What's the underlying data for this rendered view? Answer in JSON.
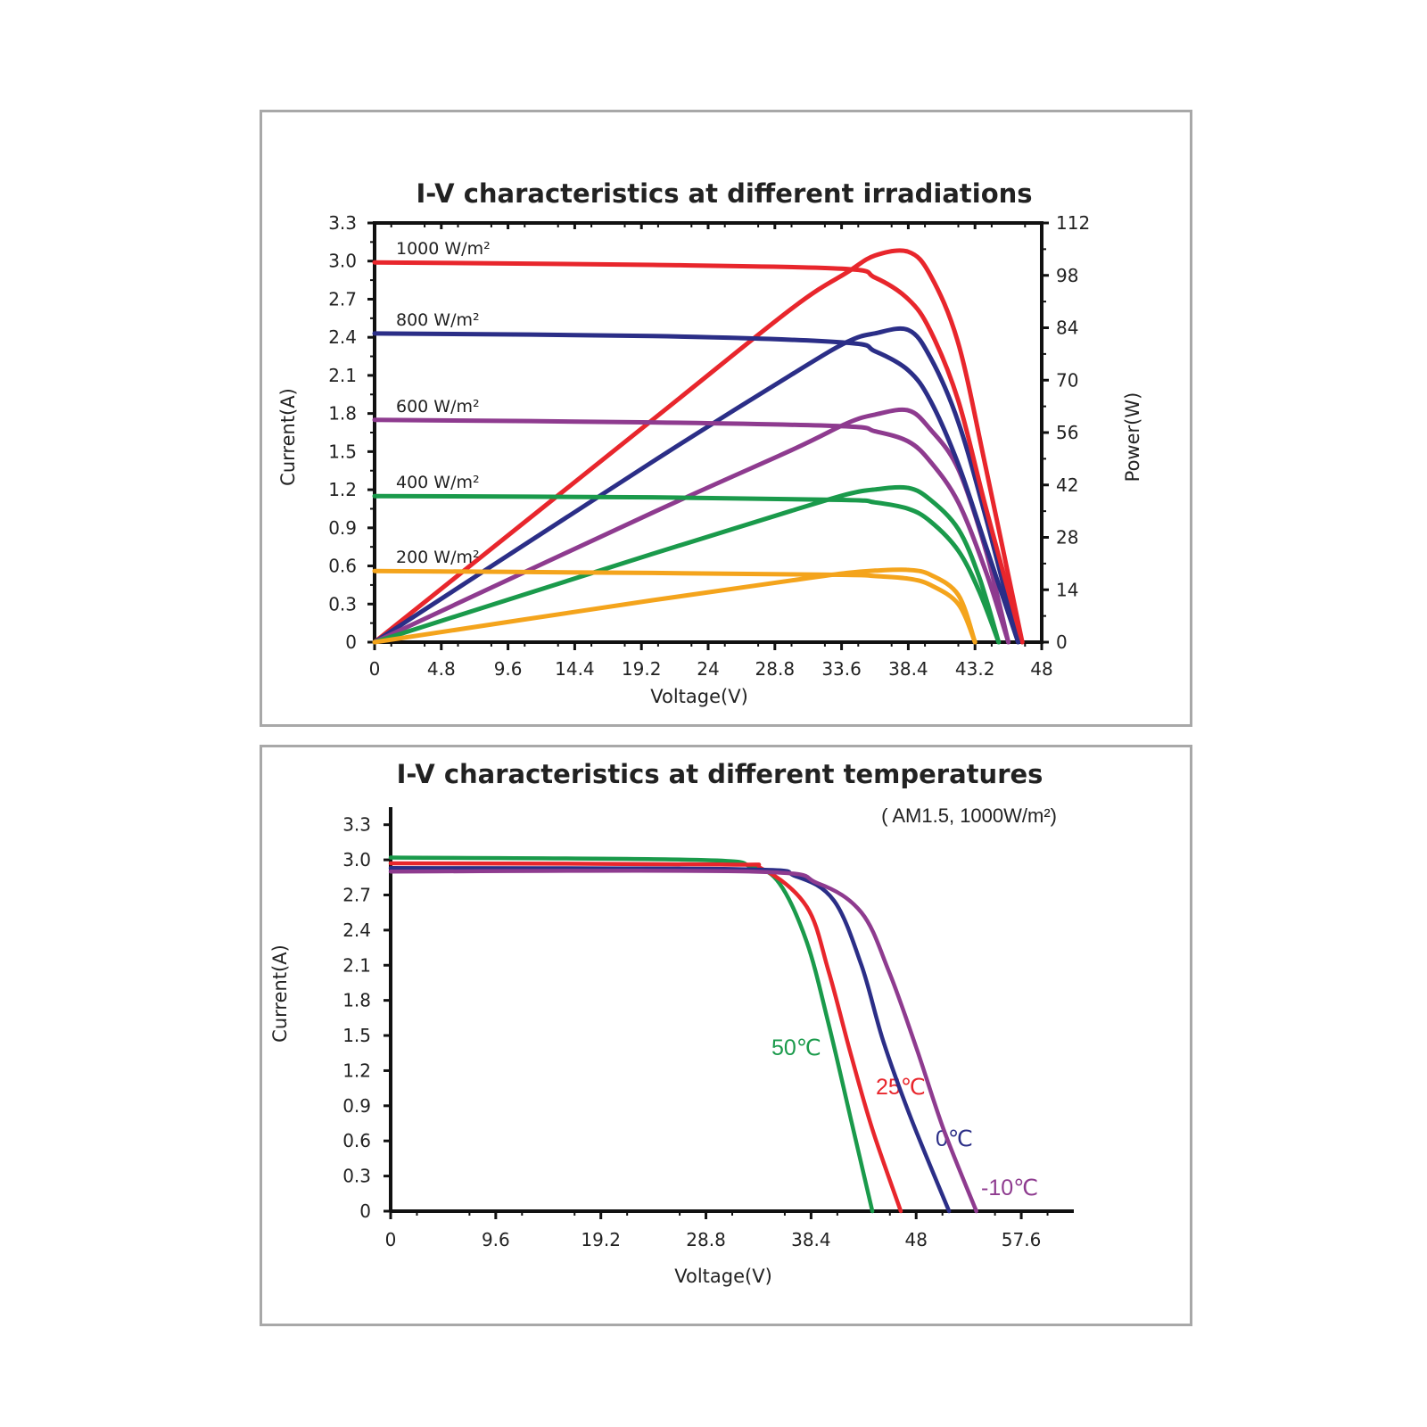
{
  "chart_data": [
    {
      "type": "line",
      "title": "I-V characteristics at different irradiations",
      "xlabel": "Voltage(V)",
      "ylabel": "Current(A)",
      "y2label": "Power(W)",
      "xlim": [
        0,
        48
      ],
      "ylim": [
        0,
        3.3
      ],
      "y2lim": [
        0,
        112
      ],
      "xticks": [
        "0",
        "4.8",
        "9.6",
        "14.4",
        "19.2",
        "24",
        "28.8",
        "33.6",
        "38.4",
        "43.2",
        "48"
      ],
      "yticks": [
        "0",
        "0.3",
        "0.6",
        "0.9",
        "1.2",
        "1.5",
        "1.8",
        "2.1",
        "2.4",
        "2.7",
        "3.0",
        "3.3"
      ],
      "y2ticks": [
        "0",
        "14",
        "28",
        "42",
        "56",
        "70",
        "84",
        "98",
        "112"
      ],
      "grid": false,
      "legend": "none",
      "series": [
        {
          "name": "1000 W/m²",
          "color": "#e8262c",
          "iv_voltage": [
            0,
            20,
            33.6,
            36,
            38.4,
            40,
            42,
            44,
            46.6
          ],
          "iv_current": [
            2.99,
            2.97,
            2.94,
            2.87,
            2.7,
            2.45,
            1.9,
            1.05,
            0
          ],
          "pv_voltage": [
            0,
            20,
            30,
            34,
            36,
            38.4,
            40,
            42,
            44,
            46.6
          ],
          "pv_power": [
            0,
            59.4,
            89.1,
            98.8,
            103.3,
            104.3,
            98,
            79.8,
            46.2,
            0
          ]
        },
        {
          "name": "800 W/m²",
          "color": "#2b2e87",
          "iv_voltage": [
            0,
            20,
            33.6,
            36,
            38.4,
            40,
            42,
            44,
            46.3
          ],
          "iv_current": [
            2.43,
            2.41,
            2.36,
            2.29,
            2.14,
            1.9,
            1.4,
            0.75,
            0
          ],
          "pv_voltage": [
            0,
            20,
            30,
            34,
            36,
            38.4,
            40,
            42,
            44,
            46.3
          ],
          "pv_power": [
            0,
            48.2,
            71.5,
            80.2,
            82.5,
            83.4,
            76,
            58.8,
            33,
            0
          ]
        },
        {
          "name": "600 W/m²",
          "color": "#8e3b8f",
          "iv_voltage": [
            0,
            20,
            33.6,
            36,
            38.4,
            40,
            42,
            44,
            45.6
          ],
          "iv_current": [
            1.75,
            1.73,
            1.7,
            1.66,
            1.58,
            1.42,
            1.1,
            0.55,
            0
          ],
          "pv_voltage": [
            0,
            20,
            30,
            34,
            36,
            38.4,
            40,
            42,
            44,
            45.6
          ],
          "pv_power": [
            0,
            34.6,
            51.3,
            58.5,
            60.8,
            61.9,
            56.8,
            46.2,
            24.2,
            0
          ]
        },
        {
          "name": "400 W/m²",
          "color": "#1a9a4b",
          "iv_voltage": [
            0,
            20,
            33.6,
            36,
            38.4,
            40,
            42,
            43.5,
            44.9
          ],
          "iv_current": [
            1.15,
            1.14,
            1.12,
            1.1,
            1.05,
            0.95,
            0.72,
            0.4,
            0
          ],
          "pv_voltage": [
            0,
            20,
            30,
            34,
            36,
            38.4,
            40,
            42,
            43.5,
            44.9
          ],
          "pv_power": [
            0,
            23.6,
            35.1,
            39.5,
            40.8,
            41.2,
            38,
            30.2,
            17.4,
            0
          ]
        },
        {
          "name": "200 W/m²",
          "color": "#f4a41c",
          "iv_voltage": [
            0,
            20,
            33.6,
            36,
            38.4,
            40,
            42,
            43.2
          ],
          "iv_current": [
            0.56,
            0.545,
            0.53,
            0.52,
            0.5,
            0.45,
            0.3,
            0
          ],
          "pv_voltage": [
            0,
            20,
            30,
            34,
            36,
            38.4,
            40,
            42,
            43.2
          ],
          "pv_power": [
            0,
            11.2,
            16.5,
            18.5,
            19.1,
            19.3,
            18,
            12.6,
            0
          ]
        }
      ]
    },
    {
      "type": "line",
      "title": "I-V characteristics at different temperatures",
      "subtitle": "( AM1.5, 1000W/m²)",
      "xlabel": "Voltage(V)",
      "ylabel": "Current(A)",
      "xlim": [
        0,
        62.4
      ],
      "ylim": [
        0,
        3.45
      ],
      "xticks": [
        "0",
        "9.6",
        "19.2",
        "28.8",
        "38.4",
        "48",
        "57.6"
      ],
      "yticks": [
        "0",
        "0.3",
        "0.6",
        "0.9",
        "1.2",
        "1.5",
        "1.8",
        "2.1",
        "2.4",
        "2.7",
        "3.0",
        "3.3"
      ],
      "grid": false,
      "legend": "none",
      "series": [
        {
          "name": "50℃",
          "color": "#1a9a4b",
          "x": [
            0,
            28,
            33,
            35.5,
            38,
            40,
            42,
            44
          ],
          "y": [
            3.02,
            3.0,
            2.94,
            2.8,
            2.3,
            1.6,
            0.8,
            0
          ]
        },
        {
          "name": "25℃",
          "color": "#e8262c",
          "x": [
            0,
            30,
            34,
            38,
            40,
            42,
            44,
            46.6
          ],
          "y": [
            2.97,
            2.96,
            2.92,
            2.6,
            2.05,
            1.35,
            0.7,
            0
          ]
        },
        {
          "name": "0℃",
          "color": "#2b2e87",
          "x": [
            0,
            32,
            37,
            40.5,
            43,
            45,
            47.5,
            51
          ],
          "y": [
            2.93,
            2.92,
            2.86,
            2.65,
            2.1,
            1.45,
            0.8,
            0
          ]
        },
        {
          "name": "-10℃",
          "color": "#8e3b8f",
          "x": [
            0,
            33,
            39,
            43,
            45.5,
            48,
            50.5,
            53.5
          ],
          "y": [
            2.9,
            2.9,
            2.8,
            2.55,
            2.05,
            1.4,
            0.7,
            0
          ]
        }
      ]
    }
  ]
}
